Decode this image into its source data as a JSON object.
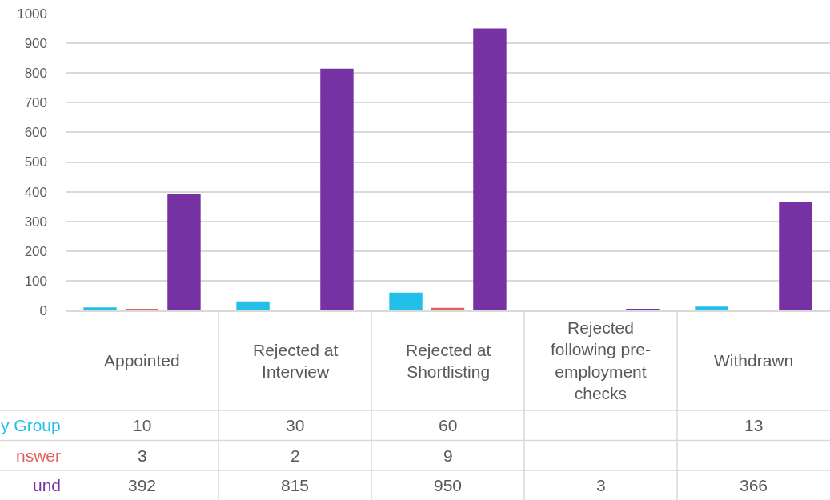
{
  "chart_data": {
    "type": "bar",
    "categories": [
      "Appointed",
      "Rejected at Interview",
      "Rejected at Shortlisting",
      "Rejected following pre-employment checks",
      "Withdrawn"
    ],
    "series": [
      {
        "name": "y Group",
        "color": "#22bfe9",
        "values": [
          10,
          30,
          60,
          null,
          13
        ]
      },
      {
        "name": "nswer",
        "color": "#e06060",
        "values": [
          3,
          2,
          9,
          null,
          null
        ]
      },
      {
        "name": "und",
        "color": "#7632a2",
        "values": [
          392,
          815,
          950,
          3,
          366
        ]
      }
    ],
    "ylim": [
      0,
      1000
    ],
    "yticks": [
      0,
      100,
      200,
      300,
      400,
      500,
      600,
      700,
      800,
      900,
      1000
    ],
    "grid": "y",
    "data_labels": true
  }
}
